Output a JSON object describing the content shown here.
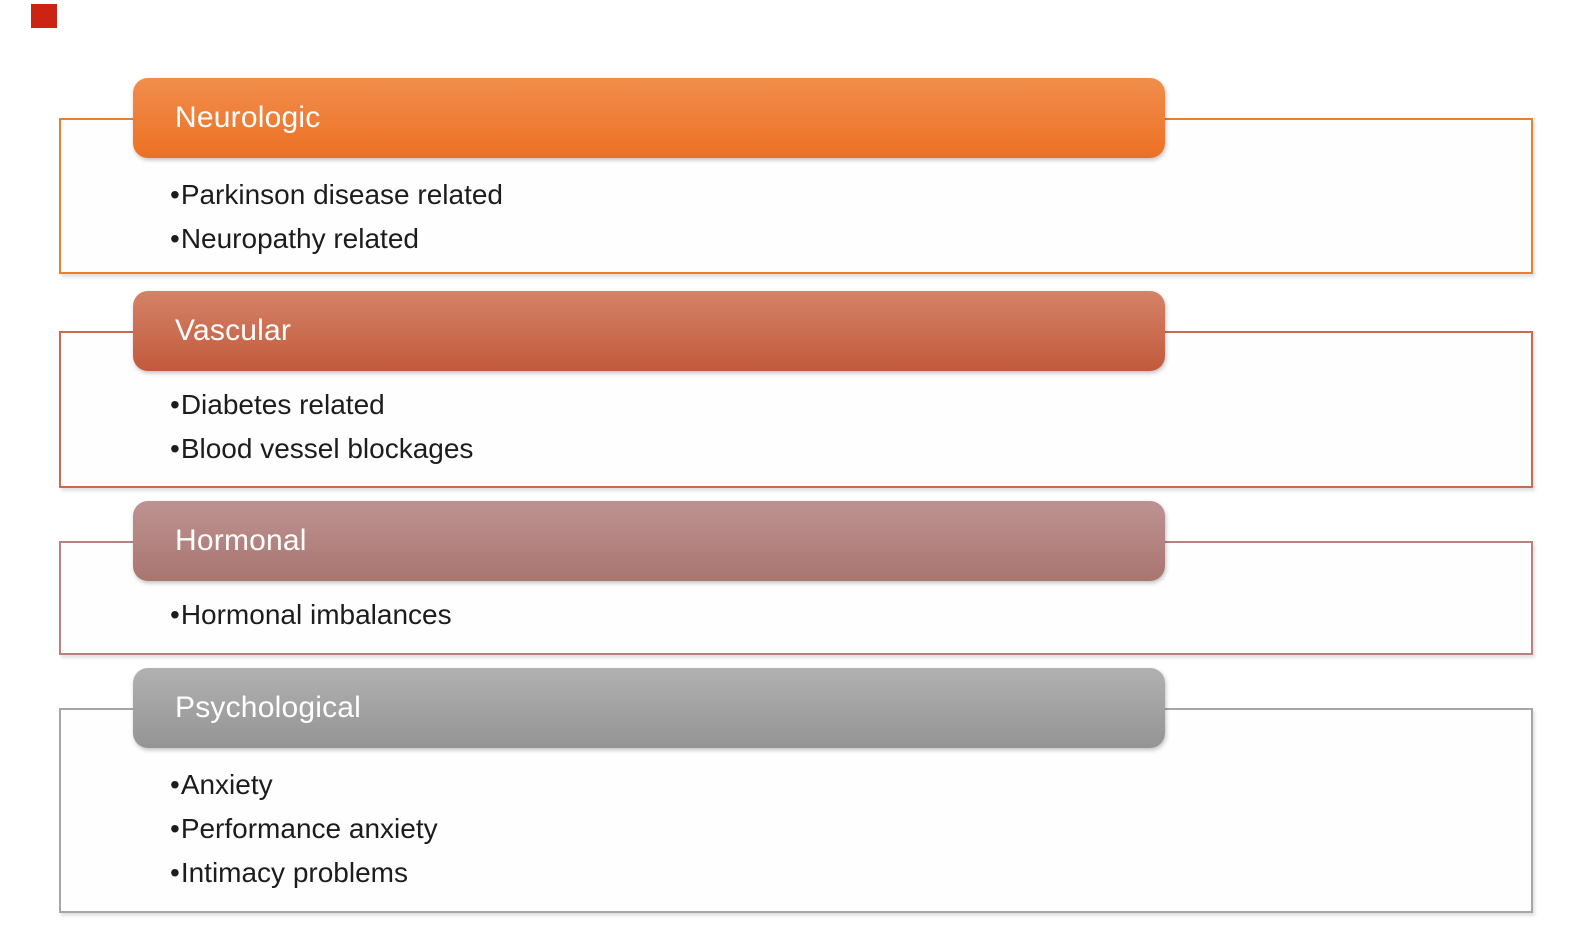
{
  "diagram": {
    "background": "#ffffff",
    "text_color": "#1c1c1c",
    "bullet_glyph": "•",
    "marker_color": "#cc2413",
    "sections": [
      {
        "title": "Neurologic",
        "items": [
          "Parkinson disease related",
          "Neuropathy related"
        ],
        "header_color_top": "#f18e4c",
        "header_color_bottom": "#ec7024",
        "outline_color": "#e8802f"
      },
      {
        "title": "Vascular",
        "items": [
          "Diabetes related",
          "Blood vessel blockages"
        ],
        "header_color_top": "#d58268",
        "header_color_bottom": "#c25a3c",
        "outline_color": "#ca6b50"
      },
      {
        "title": "Hormonal",
        "items": [
          "Hormonal imbalances"
        ],
        "header_color_top": "#bd9391",
        "header_color_bottom": "#a97571",
        "outline_color": "#b8827f"
      },
      {
        "title": "Psychological",
        "items": [
          "Anxiety",
          "Performance anxiety",
          "Intimacy problems"
        ],
        "header_color_top": "#b1b1b1",
        "header_color_bottom": "#949494",
        "outline_color": "#a6a6a6"
      }
    ]
  }
}
